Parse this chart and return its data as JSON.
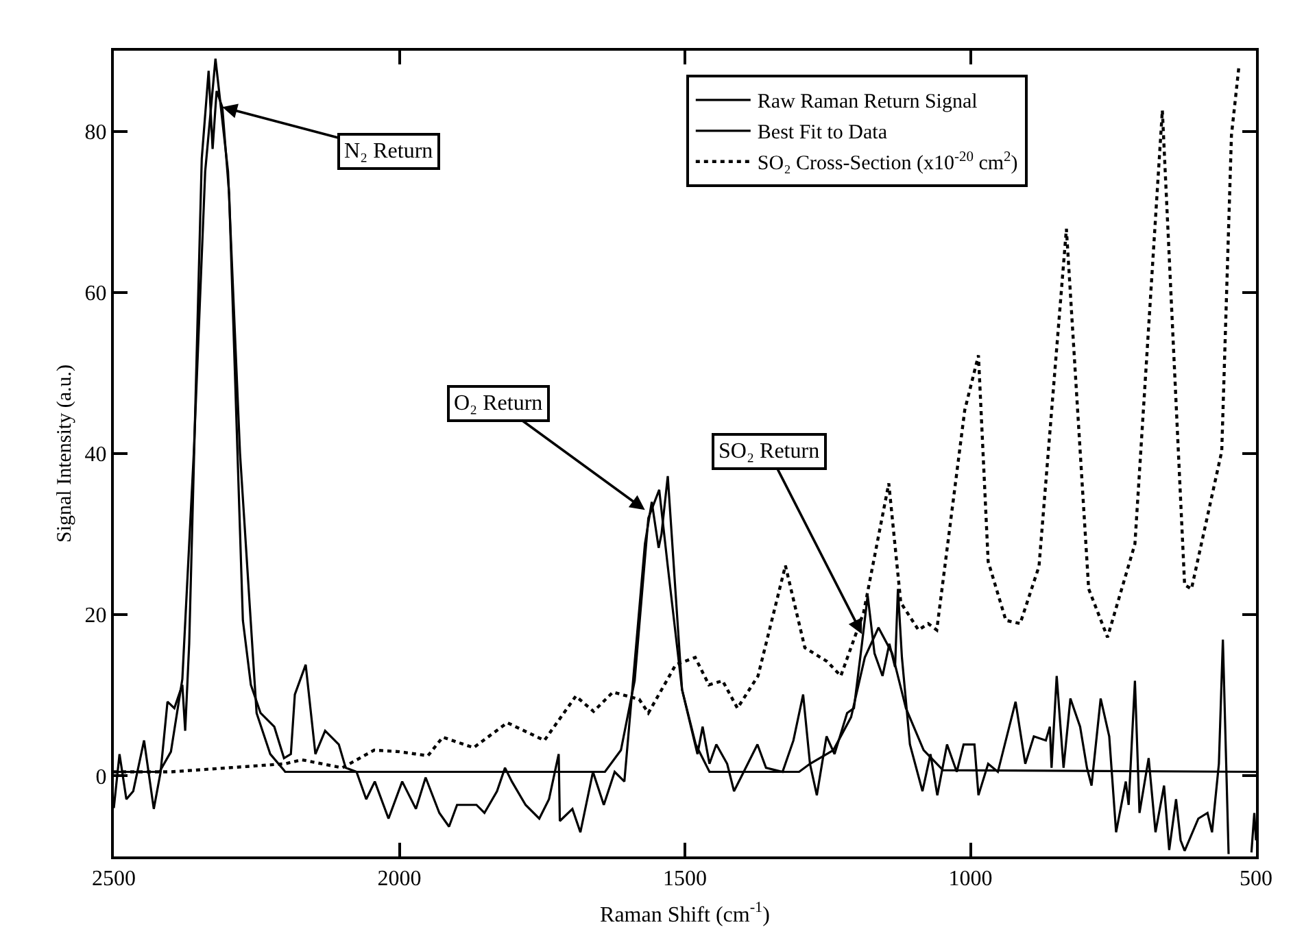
{
  "chart_data": {
    "type": "line",
    "xlabel": "Raman Shift (cm$^{-1}$)",
    "ylabel": "Signal Intensity (a.u.)",
    "xlim": [
      2500,
      500
    ],
    "xticks": [
      2500,
      2000,
      1500,
      1000,
      500
    ],
    "ylim": [
      -10,
      90
    ],
    "yticks": [
      0,
      20,
      40,
      60,
      80
    ],
    "legend": "top right",
    "series": [
      {
        "name": "Raw Raman Return Signal",
        "color": "#000000",
        "line_style": "solid",
        "x": [
          2500,
          2490,
          2478,
          2466,
          2447,
          2430,
          2418,
          2406,
          2394,
          2380,
          2375,
          2368,
          2346,
          2334,
          2327,
          2320,
          2310,
          2298,
          2274,
          2260,
          2243,
          2219,
          2202,
          2190,
          2183,
          2164,
          2147,
          2130,
          2106,
          2094,
          2075,
          2058,
          2043,
          2019,
          1995,
          1971,
          1954,
          1930,
          1913,
          1899,
          1865,
          1851,
          1829,
          1815,
          1803,
          1779,
          1755,
          1738,
          1721,
          1719,
          1697,
          1683,
          1661,
          1642,
          1623,
          1606,
          1570,
          1558,
          1546,
          1541,
          1530,
          1505,
          1478,
          1469,
          1457,
          1445,
          1426,
          1414,
          1397,
          1373,
          1358,
          1329,
          1310,
          1293,
          1281,
          1269,
          1252,
          1238,
          1216,
          1204,
          1190,
          1180,
          1168,
          1154,
          1142,
          1132,
          1127,
          1120,
          1106,
          1084,
          1070,
          1058,
          1041,
          1024,
          1012,
          993,
          986,
          969,
          952,
          921,
          904,
          889,
          868,
          861,
          858,
          849,
          837,
          825,
          808,
          796,
          788,
          772,
          757,
          745,
          728,
          723,
          712,
          704,
          688,
          676,
          661,
          652,
          640,
          632,
          625,
          601,
          585,
          577,
          565,
          558,
          548,
          530,
          508,
          503,
          500
        ],
        "values": [
          -4,
          2.7,
          -2.9,
          -1.9,
          4.4,
          -4.1,
          0.5,
          9.2,
          8.4,
          11.3,
          5.6,
          16.4,
          76.6,
          87.5,
          77.8,
          85,
          83,
          72.2,
          19.3,
          11.3,
          7.8,
          6.1,
          2.2,
          2.7,
          10.1,
          13.8,
          2.7,
          5.6,
          3.9,
          1,
          0.5,
          -2.9,
          -0.7,
          -5.3,
          -0.7,
          -4.1,
          -0.2,
          -4.6,
          -6.3,
          -3.6,
          -3.6,
          -4.6,
          -1.9,
          1,
          -0.7,
          -3.6,
          -5.3,
          -2.9,
          2.7,
          -5.6,
          -4.1,
          -7,
          0.5,
          -3.6,
          0.5,
          -0.7,
          28.8,
          34,
          28.3,
          30,
          37.2,
          10.7,
          2.7,
          6.1,
          1.5,
          3.9,
          1.5,
          -1.9,
          0.5,
          3.9,
          1,
          0.5,
          4.4,
          10.1,
          1.5,
          -2.4,
          4.9,
          2.7,
          7.8,
          8.4,
          16.4,
          22.4,
          15.2,
          12.4,
          16.4,
          13.5,
          23.2,
          14.7,
          3.9,
          -1.9,
          2.7,
          -2.4,
          3.9,
          0.5,
          3.9,
          3.9,
          -2.4,
          1.5,
          0.5,
          9.2,
          1.5,
          4.9,
          4.4,
          6.1,
          1,
          12.4,
          1,
          9.6,
          6.1,
          1,
          -1.2,
          9.6,
          4.9,
          -7,
          -0.7,
          -3.6,
          11.8,
          -4.6,
          2.2,
          -7,
          -1.2,
          -9.2,
          -2.9,
          -8,
          -9.3,
          -5.3,
          -4.6,
          -7,
          1.5,
          16.9,
          -9.7,
          null,
          -9.5,
          -4.6,
          -8
        ]
      },
      {
        "name": "Best Fit to Data",
        "color": "#000000",
        "line_style": "solid",
        "x": [
          2500,
          2420,
          2400,
          2380,
          2360,
          2340,
          2322,
          2300,
          2279,
          2250,
          2226,
          2202,
          2200,
          1640,
          1612,
          1588,
          1564,
          1545,
          1530,
          1505,
          1481,
          1457,
          1300,
          1281,
          1240,
          1209,
          1185,
          1161,
          1137,
          1113,
          1082,
          1048,
          500
        ],
        "values": [
          0.5,
          0.5,
          3,
          12,
          40,
          75,
          89,
          75,
          40,
          7.8,
          2.7,
          0.7,
          0.5,
          0.5,
          3.2,
          11.8,
          32,
          35.5,
          26,
          10.7,
          3.9,
          0.5,
          0.5,
          1.5,
          3.2,
          7.3,
          14.7,
          18.4,
          15.2,
          8.4,
          3.2,
          0.7,
          0.5
        ]
      },
      {
        "name": "SO₂ Cross-Section (x10$^{-20}$ cm$^{2}$)",
        "color": "#000000",
        "line_style": "dotted",
        "x": [
          2500,
          2400,
          2300,
          2200,
          2171,
          2100,
          2044,
          2000,
          1950,
          1924,
          1870,
          1811,
          1746,
          1691,
          1660,
          1626,
          1580,
          1564,
          1516,
          1482,
          1458,
          1434,
          1408,
          1372,
          1324,
          1290,
          1251,
          1227,
          1187,
          1143,
          1122,
          1091,
          1074,
          1059,
          1010,
          986,
          969,
          938,
          913,
          880,
          832,
          793,
          760,
          712,
          664,
          625,
          613,
          560,
          543,
          530
        ],
        "values": [
          0.5,
          0.5,
          1,
          1.5,
          2,
          1,
          3.2,
          3,
          2.5,
          4.8,
          3.5,
          6.6,
          4.4,
          9.9,
          8,
          10.4,
          9.5,
          7.8,
          13.8,
          14.7,
          11.3,
          11.8,
          8.4,
          12.4,
          26.1,
          15.9,
          14.2,
          12.4,
          20.3,
          36.3,
          21.5,
          18.1,
          18.9,
          18.1,
          45.4,
          52.2,
          26.6,
          19.3,
          18.9,
          26,
          67.9,
          23.2,
          17.2,
          28.8,
          82.6,
          23.7,
          23.2,
          40.3,
          79.5,
          88
        ]
      }
    ],
    "annotations": [
      {
        "text": "N₂ Return",
        "x": 2310,
        "y": 83
      },
      {
        "text": "O₂ Return",
        "x": 1570,
        "y": 33
      },
      {
        "text": "SO₂ Return",
        "x": 1190,
        "y": 17.6
      }
    ]
  }
}
